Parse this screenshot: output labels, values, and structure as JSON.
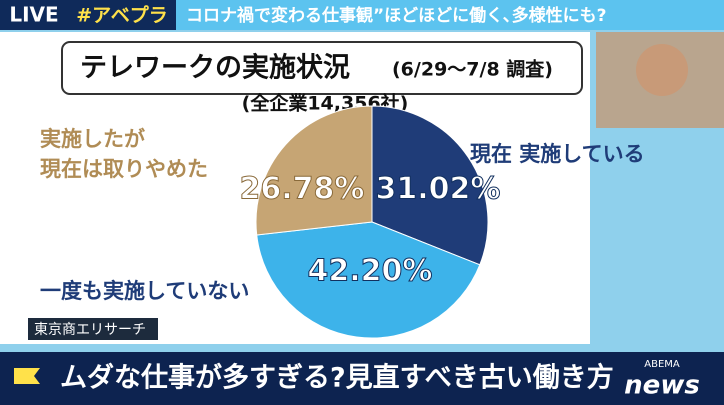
{
  "broadcast": {
    "live": "LIVE",
    "hashtag": "#アベプラ",
    "headline": "コロナ禍で変わる仕事観”ほどほどに働く､多様性にも?",
    "caption": "ムダな仕事が多すぎる?見直すべき古い働き方",
    "logo_top": "ABEMA",
    "logo_bottom": "news"
  },
  "chart_data": {
    "type": "pie",
    "title": "テレワークの実施状況",
    "subtitle": "(6/29〜7/8 調査)",
    "note": "(全企業14,356社)",
    "source": "東京商エリサーチ",
    "categories": [
      "現在 実施している",
      "一度も実施していない",
      "実施したが\n現在は取りやめた"
    ],
    "values": [
      31.02,
      42.2,
      26.78
    ],
    "value_labels": [
      "31.02%",
      "42.20%",
      "26.78%"
    ],
    "colors": [
      "#1f3c78",
      "#3db3ea",
      "#c6a574"
    ]
  }
}
